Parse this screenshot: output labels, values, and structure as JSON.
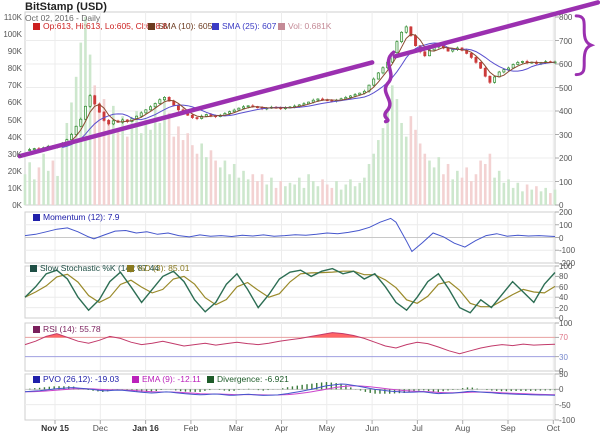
{
  "header": {
    "title": "BitStamp (USD)",
    "subtitle": "Oct 02, 2016 - Daily"
  },
  "colors": {
    "annotation_purple": "#9b30b0",
    "candle_up": "#2e8b2e",
    "candle_down": "#cc3b3b",
    "volume_up": "#cde7cd",
    "volume_down": "#f3d2d2",
    "sma10": "#8a4a30",
    "sma25": "#5a4fcf",
    "momentum_line": "#4455cc",
    "stoch_k": "#2d6e54",
    "stoch_d": "#9a8a2a",
    "rsi_line": "#c23a6a",
    "rsi_fill": "#ff5555",
    "rsi_70": "#e8a0a0",
    "rsi_30": "#a0a0e0",
    "pvo_line": "#4455cc",
    "pvo_ema": "#cc44cc",
    "pvo_divergence": "#3a7a3a",
    "gridline": "#ececec",
    "panel_border": "#cfcfcf",
    "tick_text": "#555555"
  },
  "chart_data": {
    "type": "multi-panel-financial",
    "x_axis": {
      "labels": [
        {
          "label": "Nov 15",
          "bold": true
        },
        {
          "label": "Dec",
          "bold": false
        },
        {
          "label": "Jan 16",
          "bold": true
        },
        {
          "label": "Feb",
          "bold": false
        },
        {
          "label": "Mar",
          "bold": false
        },
        {
          "label": "Apr",
          "bold": false
        },
        {
          "label": "May",
          "bold": false
        },
        {
          "label": "Jun",
          "bold": false
        },
        {
          "label": "Jul",
          "bold": false
        },
        {
          "label": "Aug",
          "bold": false
        },
        {
          "label": "Sep",
          "bold": false
        },
        {
          "label": "Oct",
          "bold": false
        }
      ]
    },
    "panels": [
      {
        "id": "price",
        "type": "candlestick+volume",
        "legend": [
          {
            "label": "Op:613, Hi:613, Lo:605, Cl:608.8",
            "color": "#cc2020"
          },
          {
            "label": "SMA (10): 605",
            "color": "#6b3a1f"
          },
          {
            "label": "SMA (25): 607",
            "color": "#3b3bc4"
          },
          {
            "label": "Vol: 0.681K",
            "color": "#c48a96"
          }
        ],
        "right_ticks": [
          800,
          700,
          600,
          500,
          400,
          300,
          200,
          100,
          0
        ],
        "left_ticks": [
          "110K",
          "100K",
          "90K",
          "80K",
          "70K",
          "60K",
          "50K",
          "40K",
          "30K",
          "20K",
          "10K",
          "0K"
        ],
        "price_range": [
          0,
          800
        ],
        "volume_range_k": [
          0,
          110
        ],
        "close": [
          232,
          236,
          240,
          238,
          244,
          250,
          248,
          254,
          262,
          278,
          300,
          335,
          365,
          420,
          465,
          430,
          395,
          360,
          345,
          358,
          352,
          362,
          355,
          368,
          378,
          392,
          405,
          418,
          432,
          448,
          458,
          442,
          425,
          405,
          392,
          382,
          372,
          368,
          378,
          385,
          380,
          376,
          382,
          390,
          397,
          404,
          412,
          418,
          422,
          419,
          414,
          410,
          413,
          416,
          414,
          411,
          414,
          417,
          421,
          426,
          431,
          438,
          446,
          451,
          448,
          445,
          443,
          446,
          452,
          458,
          464,
          470,
          476,
          484,
          510,
          536,
          562,
          584,
          608,
          648,
          695,
          735,
          758,
          720,
          678,
          652,
          635,
          660,
          672,
          683,
          668,
          655,
          662,
          668,
          658,
          645,
          628,
          607,
          582,
          548,
          522,
          545,
          566,
          576,
          583,
          598,
          607,
          611,
          605,
          608,
          602,
          606,
          610,
          607,
          608.8
        ],
        "volume_k": [
          18,
          25,
          15,
          22,
          30,
          20,
          26,
          17,
          35,
          48,
          60,
          75,
          95,
          110,
          88,
          70,
          55,
          62,
          50,
          58,
          45,
          52,
          40,
          48,
          55,
          42,
          50,
          44,
          58,
          48,
          62,
          54,
          40,
          46,
          38,
          42,
          35,
          30,
          36,
          28,
          32,
          26,
          22,
          26,
          18,
          24,
          16,
          20,
          15,
          18,
          14,
          18,
          12,
          16,
          10,
          14,
          11,
          13,
          12,
          16,
          10,
          18,
          14,
          11,
          15,
          12,
          10,
          14,
          9,
          12,
          15,
          11,
          13,
          16,
          24,
          30,
          38,
          45,
          55,
          70,
          62,
          48,
          40,
          52,
          44,
          36,
          30,
          26,
          22,
          28,
          18,
          24,
          15,
          20,
          16,
          22,
          14,
          18,
          26,
          24,
          30,
          16,
          20,
          13,
          15,
          10,
          13,
          8,
          12,
          9,
          11,
          8,
          10,
          7,
          9
        ],
        "annotations": [
          {
            "type": "trendline",
            "from": {
              "x": -0.01,
              "price": 208
            },
            "to": {
              "x": 1.081,
              "price": 862
            },
            "gap": [
              0.655,
              0.698
            ]
          },
          {
            "type": "squiggle",
            "x": 0.688,
            "price_top": 650,
            "price_bottom": 355
          },
          {
            "type": "brace-right",
            "x": 1.04,
            "price_top": 805,
            "price_bottom": 555
          }
        ]
      },
      {
        "id": "momentum",
        "type": "line",
        "legend": [
          {
            "label": "Momentum (12): 7.9",
            "color": "#2020aa"
          }
        ],
        "right_ticks": [
          200,
          100,
          0,
          -100,
          -200
        ],
        "range": [
          -200,
          200
        ],
        "points": [
          [
            0,
            15
          ],
          [
            0.02,
            25
          ],
          [
            0.04,
            45
          ],
          [
            0.06,
            65
          ],
          [
            0.08,
            75
          ],
          [
            0.1,
            45
          ],
          [
            0.12,
            5
          ],
          [
            0.13,
            -10
          ],
          [
            0.15,
            20
          ],
          [
            0.17,
            50
          ],
          [
            0.19,
            55
          ],
          [
            0.21,
            35
          ],
          [
            0.23,
            45
          ],
          [
            0.25,
            25
          ],
          [
            0.27,
            35
          ],
          [
            0.29,
            15
          ],
          [
            0.31,
            5
          ],
          [
            0.33,
            20
          ],
          [
            0.35,
            10
          ],
          [
            0.37,
            15
          ],
          [
            0.39,
            8
          ],
          [
            0.41,
            18
          ],
          [
            0.43,
            12
          ],
          [
            0.45,
            20
          ],
          [
            0.47,
            10
          ],
          [
            0.49,
            15
          ],
          [
            0.51,
            22
          ],
          [
            0.53,
            18
          ],
          [
            0.55,
            25
          ],
          [
            0.57,
            35
          ],
          [
            0.59,
            30
          ],
          [
            0.61,
            40
          ],
          [
            0.63,
            55
          ],
          [
            0.65,
            80
          ],
          [
            0.67,
            120
          ],
          [
            0.69,
            150
          ],
          [
            0.7,
            120
          ],
          [
            0.72,
            -30
          ],
          [
            0.73,
            -110
          ],
          [
            0.75,
            -40
          ],
          [
            0.77,
            35
          ],
          [
            0.79,
            5
          ],
          [
            0.81,
            -45
          ],
          [
            0.83,
            -75
          ],
          [
            0.85,
            -25
          ],
          [
            0.87,
            15
          ],
          [
            0.89,
            30
          ],
          [
            0.91,
            10
          ],
          [
            0.93,
            18
          ],
          [
            0.95,
            12
          ],
          [
            0.97,
            15
          ],
          [
            1,
            7.9
          ]
        ]
      },
      {
        "id": "stochastic",
        "type": "line",
        "legend": [
          {
            "label": "Slow Stochastic %K (14): 87.44",
            "color": "#1f4f45"
          },
          {
            "label": "%D (3): 85.01",
            "color": "#8a7a1f"
          }
        ],
        "right_ticks": [
          100,
          80,
          60,
          40,
          20,
          0
        ],
        "range": [
          0,
          100
        ],
        "points": [
          [
            0,
            40
          ],
          [
            0.02,
            60
          ],
          [
            0.04,
            85
          ],
          [
            0.06,
            92
          ],
          [
            0.08,
            75
          ],
          [
            0.1,
            40
          ],
          [
            0.12,
            15
          ],
          [
            0.14,
            35
          ],
          [
            0.16,
            70
          ],
          [
            0.18,
            88
          ],
          [
            0.2,
            60
          ],
          [
            0.22,
            30
          ],
          [
            0.24,
            55
          ],
          [
            0.26,
            80
          ],
          [
            0.28,
            90
          ],
          [
            0.3,
            70
          ],
          [
            0.32,
            35
          ],
          [
            0.34,
            12
          ],
          [
            0.36,
            30
          ],
          [
            0.38,
            65
          ],
          [
            0.4,
            85
          ],
          [
            0.42,
            55
          ],
          [
            0.44,
            20
          ],
          [
            0.46,
            45
          ],
          [
            0.48,
            75
          ],
          [
            0.5,
            88
          ],
          [
            0.52,
            92
          ],
          [
            0.54,
            80
          ],
          [
            0.56,
            90
          ],
          [
            0.58,
            95
          ],
          [
            0.6,
            85
          ],
          [
            0.62,
            90
          ],
          [
            0.64,
            75
          ],
          [
            0.66,
            85
          ],
          [
            0.68,
            60
          ],
          [
            0.7,
            30
          ],
          [
            0.72,
            15
          ],
          [
            0.74,
            40
          ],
          [
            0.76,
            70
          ],
          [
            0.78,
            85
          ],
          [
            0.8,
            55
          ],
          [
            0.82,
            20
          ],
          [
            0.84,
            10
          ],
          [
            0.86,
            35
          ],
          [
            0.88,
            20
          ],
          [
            0.9,
            45
          ],
          [
            0.92,
            70
          ],
          [
            0.94,
            50
          ],
          [
            0.96,
            30
          ],
          [
            0.98,
            65
          ],
          [
            1,
            87.44
          ]
        ]
      },
      {
        "id": "rsi",
        "type": "line",
        "legend": [
          {
            "label": "RSI (14): 55.78",
            "color": "#7a1f5c"
          }
        ],
        "right_ticks": [
          100,
          70,
          30,
          0
        ],
        "tick_colors": {
          "70": "#dd7788",
          "30": "#7788cc"
        },
        "range": [
          0,
          100
        ],
        "overbought": 70,
        "oversold": 30,
        "points": [
          [
            0,
            55
          ],
          [
            0.02,
            62
          ],
          [
            0.04,
            72
          ],
          [
            0.06,
            78
          ],
          [
            0.08,
            70
          ],
          [
            0.1,
            62
          ],
          [
            0.12,
            58
          ],
          [
            0.14,
            64
          ],
          [
            0.16,
            72
          ],
          [
            0.18,
            68
          ],
          [
            0.2,
            60
          ],
          [
            0.22,
            55
          ],
          [
            0.24,
            58
          ],
          [
            0.26,
            62
          ],
          [
            0.28,
            57
          ],
          [
            0.3,
            52
          ],
          [
            0.32,
            55
          ],
          [
            0.34,
            58
          ],
          [
            0.36,
            54
          ],
          [
            0.38,
            57
          ],
          [
            0.4,
            60
          ],
          [
            0.42,
            57
          ],
          [
            0.44,
            55
          ],
          [
            0.46,
            58
          ],
          [
            0.48,
            62
          ],
          [
            0.5,
            65
          ],
          [
            0.52,
            68
          ],
          [
            0.54,
            72
          ],
          [
            0.56,
            76
          ],
          [
            0.58,
            80
          ],
          [
            0.6,
            78
          ],
          [
            0.62,
            74
          ],
          [
            0.64,
            68
          ],
          [
            0.66,
            60
          ],
          [
            0.68,
            52
          ],
          [
            0.7,
            48
          ],
          [
            0.72,
            55
          ],
          [
            0.74,
            60
          ],
          [
            0.76,
            57
          ],
          [
            0.78,
            50
          ],
          [
            0.8,
            42
          ],
          [
            0.82,
            36
          ],
          [
            0.84,
            42
          ],
          [
            0.86,
            48
          ],
          [
            0.88,
            52
          ],
          [
            0.9,
            55
          ],
          [
            0.92,
            53
          ],
          [
            0.94,
            56
          ],
          [
            0.96,
            54
          ],
          [
            0.98,
            55
          ],
          [
            1,
            55.78
          ]
        ]
      },
      {
        "id": "pvo",
        "type": "line+histogram",
        "legend": [
          {
            "label": "PVO (26,12): -19.03",
            "color": "#2020aa"
          },
          {
            "label": "EMA (9): -12.11",
            "color": "#bb22bb"
          },
          {
            "label": "Divergence: -6.921",
            "color": "#1f5c2a"
          }
        ],
        "right_ticks": [
          50,
          0,
          -50,
          -100
        ],
        "range": [
          -100,
          50
        ],
        "points": [
          [
            0,
            -8
          ],
          [
            0.03,
            -4
          ],
          [
            0.06,
            2
          ],
          [
            0.09,
            6
          ],
          [
            0.12,
            1
          ],
          [
            0.15,
            -5
          ],
          [
            0.18,
            -2
          ],
          [
            0.21,
            -8
          ],
          [
            0.24,
            -12
          ],
          [
            0.27,
            -8
          ],
          [
            0.3,
            -14
          ],
          [
            0.33,
            -18
          ],
          [
            0.36,
            -15
          ],
          [
            0.39,
            -20
          ],
          [
            0.42,
            -16
          ],
          [
            0.45,
            -20
          ],
          [
            0.48,
            -18
          ],
          [
            0.51,
            -10
          ],
          [
            0.54,
            0
          ],
          [
            0.57,
            12
          ],
          [
            0.6,
            18
          ],
          [
            0.63,
            10
          ],
          [
            0.66,
            0
          ],
          [
            0.69,
            -6
          ],
          [
            0.72,
            -10
          ],
          [
            0.75,
            -8
          ],
          [
            0.78,
            -14
          ],
          [
            0.81,
            -12
          ],
          [
            0.84,
            -6
          ],
          [
            0.87,
            -10
          ],
          [
            0.9,
            -14
          ],
          [
            0.93,
            -16
          ],
          [
            0.96,
            -18
          ],
          [
            1,
            -19.03
          ]
        ]
      }
    ]
  }
}
